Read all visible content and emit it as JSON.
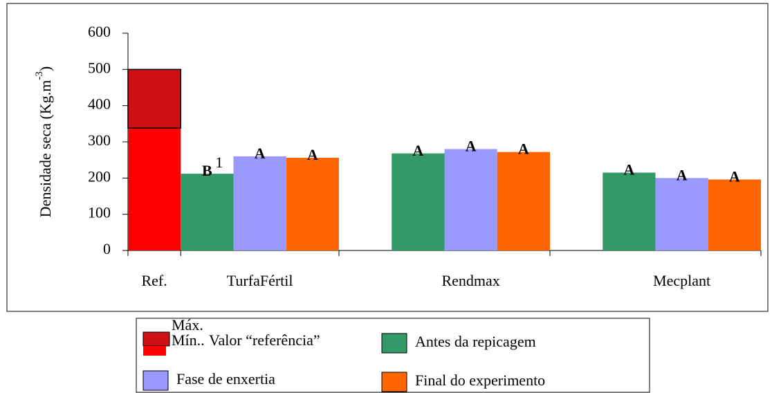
{
  "chart_data": {
    "type": "bar",
    "y_label": "Densidade seca (Kg.m",
    "y_label_sup": "-3",
    "y_label_end": ")",
    "categories": [
      "Ref.",
      "TurfaFértil",
      "Rendmax",
      "Mecplant"
    ],
    "reference": {
      "name": "Valor “referência”",
      "min": 338,
      "max": 500,
      "min_label": "Mín..",
      "max_label": "Máx.",
      "color": "#ff0000",
      "max_color": "#cc1016"
    },
    "series": [
      {
        "name": "Antes da repicagem",
        "color": "#339966",
        "values": [
          null,
          212,
          268,
          215
        ],
        "letters": [
          null,
          "B",
          "A",
          "A"
        ]
      },
      {
        "name": "Fase de enxertia",
        "color": "#9999ff",
        "values": [
          null,
          260,
          280,
          200
        ],
        "letters": [
          null,
          "A",
          "A",
          "A"
        ]
      },
      {
        "name": "Final do experimento",
        "color": "#ff6600",
        "values": [
          null,
          256,
          272,
          196
        ],
        "letters": [
          null,
          "A",
          "A",
          "A"
        ]
      }
    ],
    "footnote_marker": "1",
    "ylim": [
      0,
      600
    ],
    "yticks": [
      0,
      100,
      200,
      300,
      400,
      500,
      600
    ]
  }
}
